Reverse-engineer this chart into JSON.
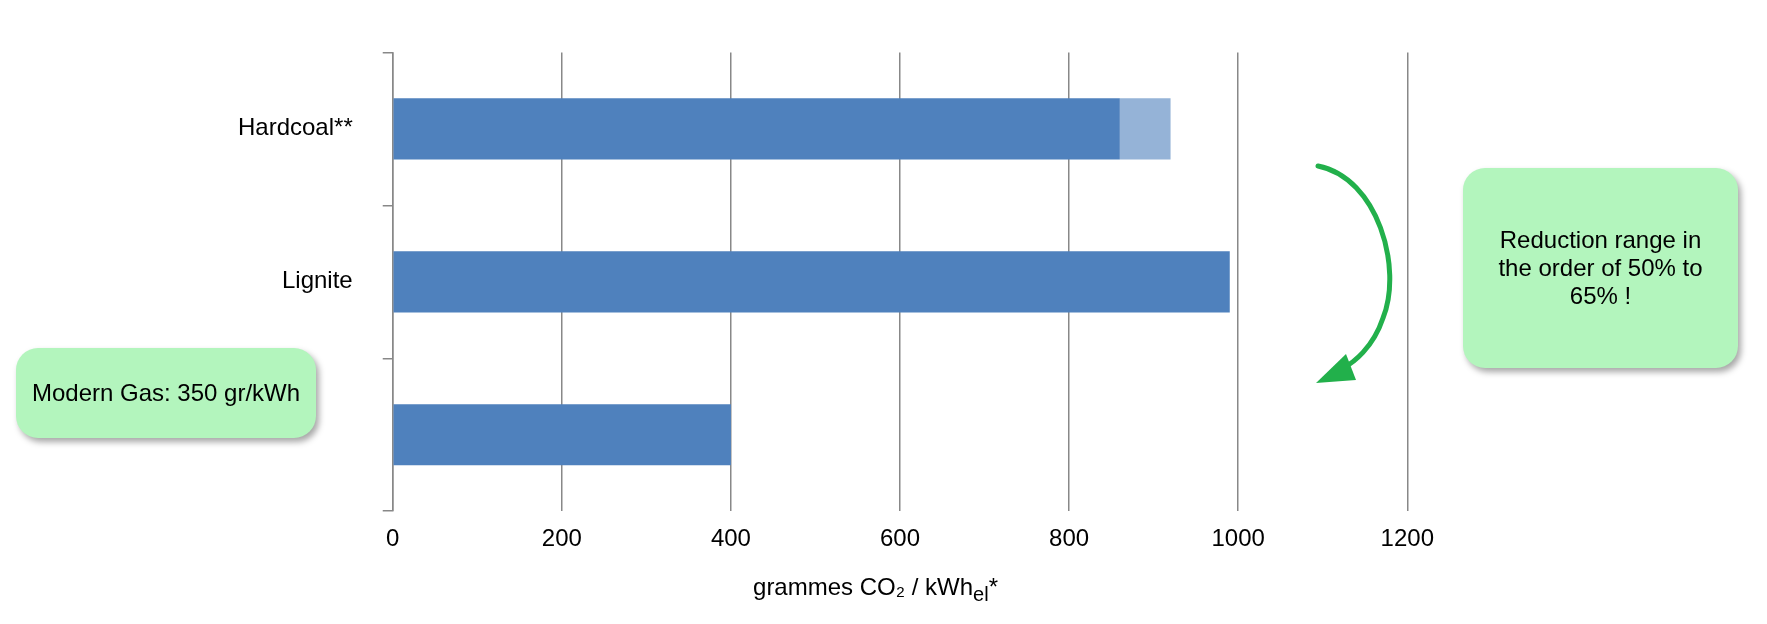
{
  "chart_data": {
    "type": "bar",
    "orientation": "horizontal",
    "stacked": true,
    "categories": [
      "Hardcoal**",
      "Lignite",
      null
    ],
    "series": [
      {
        "color": "#4f81bd",
        "values": [
          860,
          990,
          400
        ]
      },
      {
        "color": "#95b3d7",
        "values": [
          60,
          null,
          null
        ]
      }
    ],
    "xlim": [
      0,
      1200
    ],
    "xticks": [
      0,
      200,
      400,
      600,
      800,
      1000,
      1200
    ],
    "grid": "x",
    "legend": false,
    "xlabel": "grammes CO₂ / kWh$_{el}$*",
    "annotations": [
      "Modern Gas: 350 gr/kWh",
      "Reduction range in the order of 50% to 65% !"
    ]
  }
}
